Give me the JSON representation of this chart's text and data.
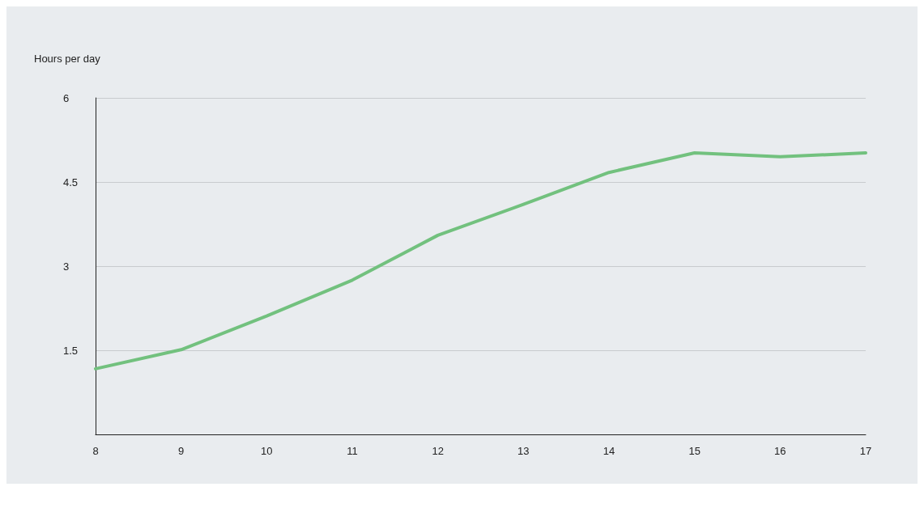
{
  "chart_data": {
    "type": "line",
    "ylabel": "Hours per day",
    "x": [
      8,
      9,
      10,
      11,
      12,
      13,
      14,
      15,
      16,
      17
    ],
    "series": [
      {
        "color": "#72c17e",
        "values": [
          1.17,
          1.51,
          2.11,
          2.75,
          3.55,
          4.1,
          4.67,
          5.02,
          4.95,
          5.02
        ]
      }
    ],
    "xlim": [
      8,
      17
    ],
    "xticks": [
      8,
      9,
      10,
      11,
      12,
      13,
      14,
      15,
      16,
      17
    ],
    "ylim": [
      0,
      6
    ],
    "yticks": [
      1.5,
      3,
      4.5,
      6
    ],
    "grid": "y",
    "marker": "none",
    "line_style": "solid"
  }
}
